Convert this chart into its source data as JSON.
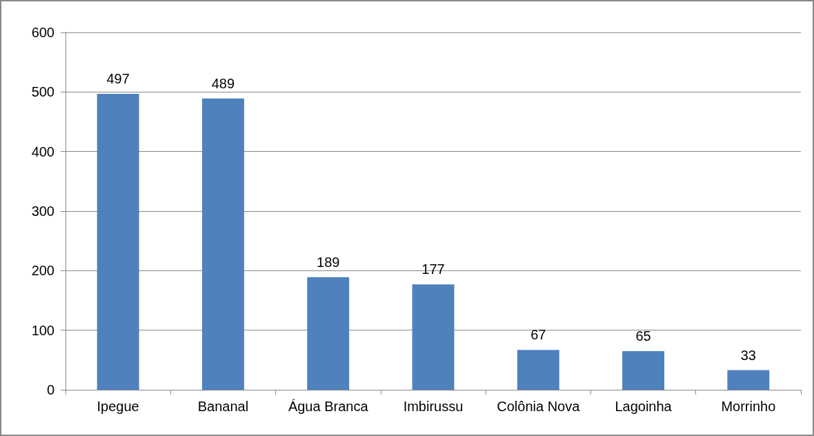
{
  "chart_data": {
    "type": "bar",
    "categories": [
      "Ipegue",
      "Bananal",
      "Água Branca",
      "Imbirussu",
      "Colônia Nova",
      "Lagoinha",
      "Morrinho"
    ],
    "values": [
      497,
      489,
      189,
      177,
      67,
      65,
      33
    ],
    "color": "#4f81bd",
    "ylim": [
      0,
      600
    ],
    "yticks": [
      0,
      100,
      200,
      300,
      400,
      500,
      600
    ],
    "grid": "y",
    "data_labels": true
  }
}
